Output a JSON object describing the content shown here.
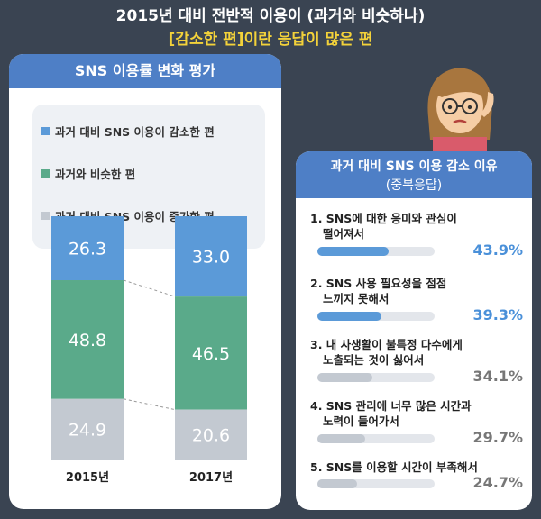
{
  "header": {
    "line1": "2015년 대비 전반적 이용이 (과거와 비슷하나)",
    "line2": "[감소한 편]이란 응답이 많은 편"
  },
  "left_title": "SNS 이용률 변화 평가",
  "right_title_1": "과거 대비 SNS 이용 감소 이유",
  "right_title_2": "(중복응답)",
  "colors": {
    "decrease": "#5b9ad8",
    "similar": "#5aaa8a",
    "increase": "#c3c9d1",
    "accent": "#4e7fc6",
    "pct_blue": "#4a90d9",
    "pct_gray": "#777777"
  },
  "chart_data": [
    {
      "type": "bar",
      "stacked": true,
      "categories": [
        "2015년",
        "2017년"
      ],
      "series": [
        {
          "name": "과거 대비 SNS 이용이 감소한 편",
          "values": [
            26.3,
            33.0
          ],
          "labels": [
            "26.3",
            "33.0"
          ]
        },
        {
          "name": "과거와 비슷한 편",
          "values": [
            48.8,
            46.5
          ],
          "labels": [
            "48.8",
            "46.5"
          ]
        },
        {
          "name": "과거 대비 SNS 이용이 증가한 편",
          "values": [
            24.9,
            20.6
          ],
          "labels": [
            "24.9",
            "20.6"
          ]
        }
      ]
    },
    {
      "type": "bar",
      "orientation": "horizontal",
      "categories": [
        "1. SNS에 대한 응미와 관심이 떨어져서",
        "2. SNS 사용 필요성을 점점 느끼지 못해서",
        "3. 내 사생활이 불특정 다수에게 노출되는 것이 싫어서",
        "4. SNS 관리에 너무 많은 시간과 노력이 들어가서",
        "5. SNS를 이용할 시간이 부족해서"
      ],
      "values": [
        43.9,
        39.3,
        34.1,
        29.7,
        24.7
      ],
      "labels": [
        "43.9%",
        "39.3%",
        "34.1%",
        "29.7%",
        "24.7%"
      ]
    }
  ],
  "reasons": [
    {
      "line1": "1. SNS에 대한 응미와 관심이",
      "line2": "떨어져서"
    },
    {
      "line1": "2. SNS 사용 필요성을 점점",
      "line2": "느끼지 못해서"
    },
    {
      "line1": "3. 내 사생활이 불특정 다수에게",
      "line2": "노출되는 것이 싫어서"
    },
    {
      "line1": "4. SNS 관리에 너무 많은 시간과",
      "line2": "노력이 들어가서"
    },
    {
      "line1": "5. SNS를 이용할 시간이 부족해서",
      "line2": ""
    }
  ]
}
